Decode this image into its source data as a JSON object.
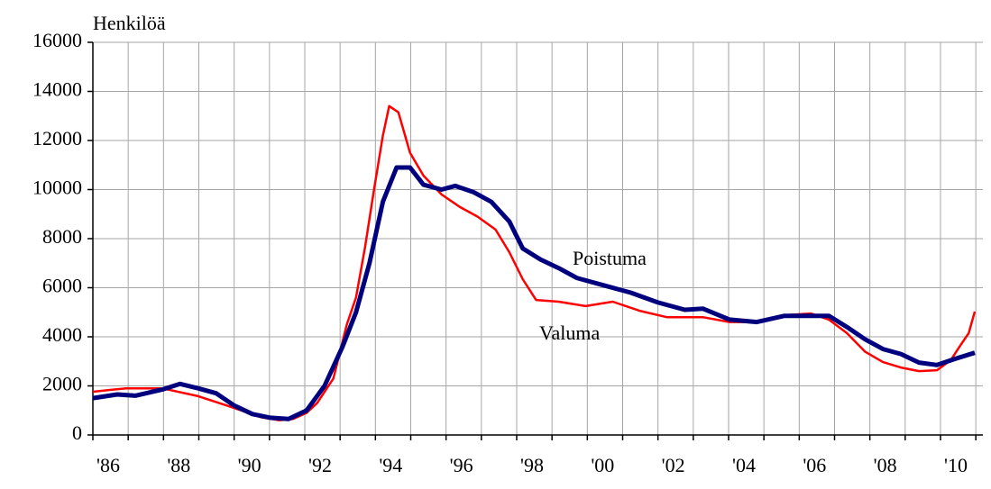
{
  "chart_data": {
    "type": "line",
    "y_label": "Henkilöä",
    "xlim": [
      1986,
      2011.2
    ],
    "ylim": [
      0,
      16000
    ],
    "yticks": [
      0,
      2000,
      4000,
      6000,
      8000,
      10000,
      12000,
      14000,
      16000
    ],
    "xticks": [
      {
        "value": 1986,
        "label": "'86"
      },
      {
        "value": 1988,
        "label": "'88"
      },
      {
        "value": 1990,
        "label": "'90"
      },
      {
        "value": 1992,
        "label": "'92"
      },
      {
        "value": 1994,
        "label": "'94"
      },
      {
        "value": 1996,
        "label": "'96"
      },
      {
        "value": 1998,
        "label": "'98"
      },
      {
        "value": 2000,
        "label": "'00"
      },
      {
        "value": 2002,
        "label": "'02"
      },
      {
        "value": 2004,
        "label": "'04"
      },
      {
        "value": 2006,
        "label": "'06"
      },
      {
        "value": 2008,
        "label": "'08"
      },
      {
        "value": 2010,
        "label": "'10"
      }
    ],
    "xminor": [
      1987,
      1989,
      1991,
      1993,
      1995,
      1997,
      1999,
      2001,
      2003,
      2005,
      2007,
      2009,
      2011
    ],
    "grid": true,
    "series": [
      {
        "name": "Valuma",
        "color": "#ff0000",
        "width": 2.5,
        "x": [
          1986.0,
          1986.94,
          1987.96,
          1988.98,
          1990.0,
          1990.77,
          1991.28,
          1991.66,
          1992.05,
          1992.35,
          1992.81,
          1993.19,
          1993.45,
          1993.7,
          1993.96,
          1994.21,
          1994.39,
          1994.65,
          1994.98,
          1995.36,
          1995.87,
          1996.38,
          1996.89,
          1997.4,
          1997.79,
          1998.17,
          1998.55,
          1999.19,
          1999.95,
          2000.72,
          2001.48,
          2002.25,
          2003.27,
          2004.03,
          2004.8,
          2005.57,
          2006.33,
          2006.84,
          2007.35,
          2007.86,
          2008.37,
          2008.88,
          2009.39,
          2009.9,
          2010.29,
          2010.54,
          2010.8,
          2010.97
        ],
        "values": [
          1760,
          1900,
          1900,
          1580,
          1100,
          720,
          600,
          650,
          900,
          1300,
          2300,
          4500,
          5600,
          7600,
          10000,
          12200,
          13400,
          13150,
          11500,
          10570,
          9800,
          9300,
          8900,
          8370,
          7450,
          6350,
          5500,
          5430,
          5250,
          5430,
          5060,
          4800,
          4800,
          4600,
          4600,
          4880,
          4950,
          4700,
          4150,
          3400,
          2970,
          2750,
          2600,
          2640,
          3050,
          3600,
          4150,
          5030
        ]
      },
      {
        "name": "Poistuma",
        "color": "#00007f",
        "width": 5,
        "x": [
          1986.0,
          1986.69,
          1987.2,
          1987.96,
          1988.47,
          1988.98,
          1989.49,
          1990.0,
          1990.52,
          1991.03,
          1991.54,
          1992.05,
          1992.56,
          1993.07,
          1993.45,
          1993.83,
          1994.21,
          1994.6,
          1994.98,
          1995.36,
          1995.87,
          1996.26,
          1996.77,
          1997.28,
          1997.79,
          1998.17,
          1998.68,
          1999.19,
          1999.7,
          2000.46,
          2001.23,
          2002.0,
          2002.76,
          2003.27,
          2004.03,
          2004.8,
          2005.57,
          2006.33,
          2006.84,
          2007.35,
          2007.86,
          2008.37,
          2008.88,
          2009.39,
          2009.9,
          2010.41,
          2010.97
        ],
        "values": [
          1500,
          1650,
          1600,
          1850,
          2080,
          1900,
          1700,
          1200,
          850,
          700,
          650,
          1000,
          2000,
          3600,
          5000,
          7000,
          9500,
          10900,
          10900,
          10200,
          10000,
          10150,
          9900,
          9500,
          8700,
          7600,
          7150,
          6800,
          6400,
          6100,
          5800,
          5400,
          5100,
          5150,
          4700,
          4600,
          4850,
          4850,
          4850,
          4400,
          3900,
          3500,
          3300,
          2950,
          2850,
          3100,
          3350
        ]
      }
    ]
  }
}
